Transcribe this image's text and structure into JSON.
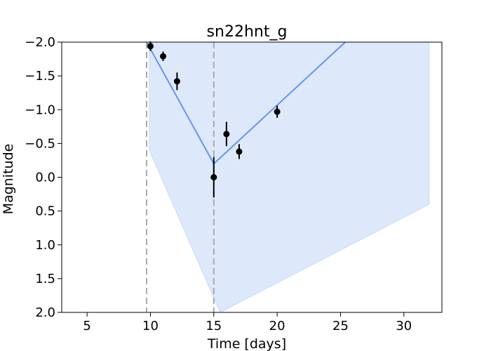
{
  "chart_data": {
    "type": "line",
    "title": "sn22hnt_g",
    "xlabel": "Time [days]",
    "ylabel": "Magnitude",
    "xlim": [
      3.0,
      33.0
    ],
    "ylim": [
      2.0,
      -2.0
    ],
    "y_inverted": true,
    "grid": false,
    "xticks": [
      5,
      10,
      15,
      20,
      25,
      30
    ],
    "xtick_labels": [
      "5",
      "10",
      "15",
      "20",
      "25",
      "30"
    ],
    "yticks": [
      -2.0,
      -1.5,
      -1.0,
      -0.5,
      0.0,
      0.5,
      1.0,
      1.5,
      2.0
    ],
    "ytick_labels": [
      "−2.0",
      "−1.5",
      "−1.0",
      "−0.5",
      "0.0",
      "0.5",
      "1.0",
      "1.5",
      "2.0"
    ],
    "vlines": [
      9.7,
      15.0
    ],
    "colors": {
      "model_line": "#6495ed",
      "band_fill": "#6495ed",
      "points": "#000000",
      "vline": "#a9a9a9"
    },
    "model_line": {
      "x": [
        9.7,
        15.0,
        32.0
      ],
      "y": [
        -2.0,
        -0.2,
        -3.15
      ]
    },
    "uncertainty_band": {
      "upper": {
        "x": [
          9.9,
          14.1,
          14.3,
          15.0,
          32.0
        ],
        "y": [
          -2.2,
          -2.2,
          -2.15,
          -2.2,
          -2.2
        ]
      },
      "lower": {
        "x": [
          9.9,
          15.5,
          32.0
        ],
        "y": [
          -0.4,
          2.0,
          0.4
        ]
      }
    },
    "series": [
      {
        "type": "errorbar",
        "x": [
          10.0,
          11.0,
          12.1,
          15.0,
          16.0,
          17.0,
          20.0
        ],
        "y": [
          -1.94,
          -1.79,
          -1.42,
          0.0,
          -0.64,
          -0.38,
          -0.97
        ],
        "yerr": [
          0.07,
          0.07,
          0.13,
          0.3,
          0.18,
          0.11,
          0.09
        ]
      }
    ]
  }
}
